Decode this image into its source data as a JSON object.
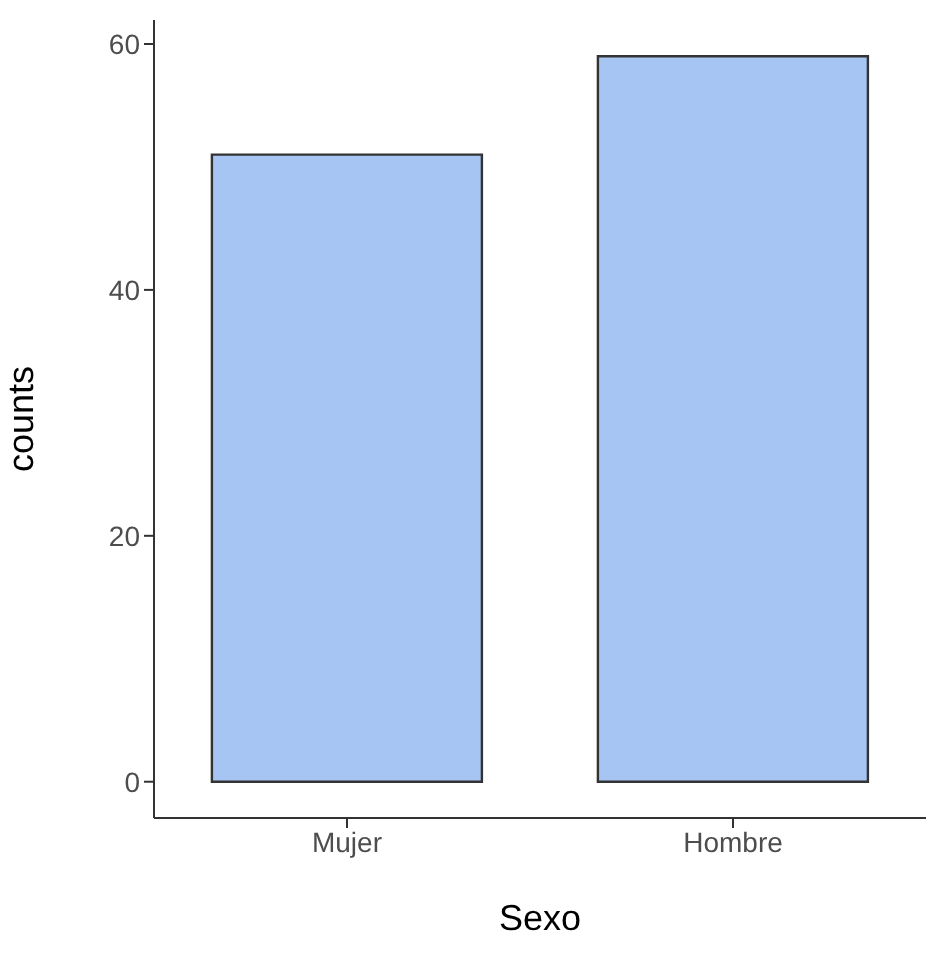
{
  "chart_data": {
    "type": "bar",
    "xlabel": "Sexo",
    "ylabel": "counts",
    "categories": [
      "Mujer",
      "Hombre"
    ],
    "values": [
      51,
      59
    ],
    "color": "#a6c5f2",
    "ylim": [
      -2.95,
      61.95
    ],
    "yticks": [
      0,
      20,
      40,
      60
    ],
    "grid": false
  }
}
